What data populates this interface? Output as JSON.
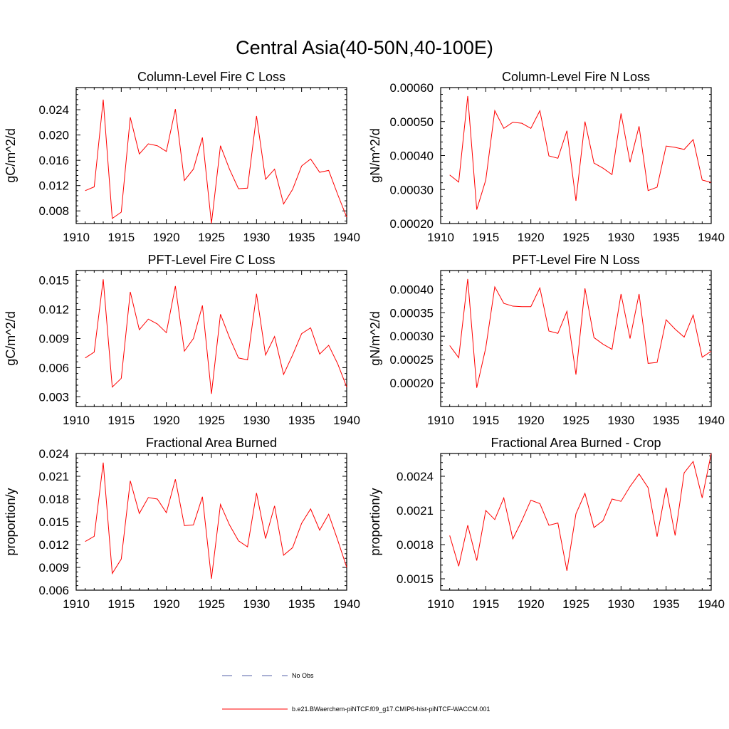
{
  "title": "Central Asia(40-50N,40-100E)",
  "colors": {
    "model_line": "#ff0000",
    "obs_line": "#5560a8",
    "axis": "#000000"
  },
  "legend": [
    {
      "label": "No Obs",
      "style": "dashed",
      "color": "#5560a8"
    },
    {
      "label": "b.e21.BWaerchem-piNTCF.f09_g17.CMIP6-hist-piNTCF-WACCM.001",
      "style": "solid",
      "color": "#ff0000"
    }
  ],
  "chart_data": [
    {
      "type": "line",
      "title": "Column-Level Fire C Loss",
      "ylabel": "gC/m^2/d",
      "xlim": [
        1910,
        1940
      ],
      "ylim": [
        0.006,
        0.0275
      ],
      "xticks": [
        1910,
        1915,
        1920,
        1925,
        1930,
        1935,
        1940
      ],
      "yticks": [
        0.008,
        0.012,
        0.016,
        0.02,
        0.024
      ],
      "ytick_labels": [
        "0.008",
        "0.012",
        "0.016",
        "0.020",
        "0.024"
      ],
      "x": [
        1911,
        1912,
        1913,
        1914,
        1915,
        1916,
        1917,
        1918,
        1919,
        1920,
        1921,
        1922,
        1923,
        1924,
        1925,
        1926,
        1927,
        1928,
        1929,
        1930,
        1931,
        1932,
        1933,
        1934,
        1935,
        1936,
        1937,
        1938,
        1939,
        1940
      ],
      "series": [
        {
          "values": [
            0.0112,
            0.0118,
            0.0256,
            0.0068,
            0.0078,
            0.0228,
            0.017,
            0.0186,
            0.0183,
            0.0174,
            0.0241,
            0.0128,
            0.0146,
            0.0196,
            0.006,
            0.0183,
            0.0146,
            0.0115,
            0.0116,
            0.023,
            0.013,
            0.0146,
            0.0091,
            0.0114,
            0.0151,
            0.0162,
            0.0141,
            0.0144,
            0.0106,
            0.007
          ]
        }
      ]
    },
    {
      "type": "line",
      "title": "Column-Level Fire N Loss",
      "ylabel": "gN/m^2/d",
      "xlim": [
        1910,
        1940
      ],
      "ylim": [
        0.0002,
        0.0006
      ],
      "xticks": [
        1910,
        1915,
        1920,
        1925,
        1930,
        1935,
        1940
      ],
      "yticks": [
        0.0002,
        0.0003,
        0.0004,
        0.0005,
        0.0006
      ],
      "ytick_labels": [
        "0.00020",
        "0.00030",
        "0.00040",
        "0.00050",
        "0.00060"
      ],
      "x": [
        1911,
        1912,
        1913,
        1914,
        1915,
        1916,
        1917,
        1918,
        1919,
        1920,
        1921,
        1922,
        1923,
        1924,
        1925,
        1926,
        1927,
        1928,
        1929,
        1930,
        1931,
        1932,
        1933,
        1934,
        1935,
        1936,
        1937,
        1938,
        1939,
        1940
      ],
      "series": [
        {
          "values": [
            0.000343,
            0.000322,
            0.000575,
            0.000241,
            0.000328,
            0.000532,
            0.00048,
            0.000498,
            0.000495,
            0.00048,
            0.000532,
            0.000399,
            0.000392,
            0.000473,
            0.000267,
            0.0005,
            0.000378,
            0.000363,
            0.000344,
            0.000524,
            0.00038,
            0.000486,
            0.000297,
            0.000307,
            0.000428,
            0.000424,
            0.000418,
            0.000447,
            0.000328,
            0.000321
          ]
        }
      ]
    },
    {
      "type": "line",
      "title": "PFT-Level Fire C Loss",
      "ylabel": "gC/m^2/d",
      "xlim": [
        1910,
        1940
      ],
      "ylim": [
        0.002,
        0.016
      ],
      "xticks": [
        1910,
        1915,
        1920,
        1925,
        1930,
        1935,
        1940
      ],
      "yticks": [
        0.003,
        0.006,
        0.009,
        0.012,
        0.015
      ],
      "ytick_labels": [
        "0.003",
        "0.006",
        "0.009",
        "0.012",
        "0.015"
      ],
      "x": [
        1911,
        1912,
        1913,
        1914,
        1915,
        1916,
        1917,
        1918,
        1919,
        1920,
        1921,
        1922,
        1923,
        1924,
        1925,
        1926,
        1927,
        1928,
        1929,
        1930,
        1931,
        1932,
        1933,
        1934,
        1935,
        1936,
        1937,
        1938,
        1939,
        1940
      ],
      "series": [
        {
          "values": [
            0.007,
            0.0076,
            0.0151,
            0.004,
            0.0049,
            0.0138,
            0.0099,
            0.011,
            0.0105,
            0.0096,
            0.0144,
            0.0077,
            0.009,
            0.0124,
            0.0033,
            0.0115,
            0.0091,
            0.007,
            0.0068,
            0.0136,
            0.0073,
            0.0092,
            0.0053,
            0.0073,
            0.0095,
            0.0101,
            0.0074,
            0.0083,
            0.0064,
            0.004
          ]
        }
      ]
    },
    {
      "type": "line",
      "title": "PFT-Level Fire N Loss",
      "ylabel": "gN/m^2/d",
      "xlim": [
        1910,
        1940
      ],
      "ylim": [
        0.00015,
        0.00044
      ],
      "xticks": [
        1910,
        1915,
        1920,
        1925,
        1930,
        1935,
        1940
      ],
      "yticks": [
        0.0002,
        0.00025,
        0.0003,
        0.00035,
        0.0004
      ],
      "ytick_labels": [
        "0.00020",
        "0.00025",
        "0.00030",
        "0.00035",
        "0.00040"
      ],
      "x": [
        1911,
        1912,
        1913,
        1914,
        1915,
        1916,
        1917,
        1918,
        1919,
        1920,
        1921,
        1922,
        1923,
        1924,
        1925,
        1926,
        1927,
        1928,
        1929,
        1930,
        1931,
        1932,
        1933,
        1934,
        1935,
        1936,
        1937,
        1938,
        1939,
        1940
      ],
      "series": [
        {
          "values": [
            0.00028,
            0.000254,
            0.000422,
            0.00019,
            0.000275,
            0.000405,
            0.00037,
            0.000364,
            0.000363,
            0.000363,
            0.000403,
            0.000311,
            0.000306,
            0.000353,
            0.000218,
            0.000402,
            0.000297,
            0.000283,
            0.000272,
            0.00039,
            0.000295,
            0.00039,
            0.000242,
            0.000244,
            0.000335,
            0.000315,
            0.000298,
            0.000345,
            0.000255,
            0.000268
          ]
        }
      ]
    },
    {
      "type": "line",
      "title": "Fractional Area Burned",
      "ylabel": "proportion/y",
      "xlim": [
        1910,
        1940
      ],
      "ylim": [
        0.006,
        0.024
      ],
      "xticks": [
        1910,
        1915,
        1920,
        1925,
        1930,
        1935,
        1940
      ],
      "yticks": [
        0.006,
        0.009,
        0.012,
        0.015,
        0.018,
        0.021,
        0.024
      ],
      "ytick_labels": [
        "0.006",
        "0.009",
        "0.012",
        "0.015",
        "0.018",
        "0.021",
        "0.024"
      ],
      "x": [
        1911,
        1912,
        1913,
        1914,
        1915,
        1916,
        1917,
        1918,
        1919,
        1920,
        1921,
        1922,
        1923,
        1924,
        1925,
        1926,
        1927,
        1928,
        1929,
        1930,
        1931,
        1932,
        1933,
        1934,
        1935,
        1936,
        1937,
        1938,
        1939,
        1940
      ],
      "series": [
        {
          "values": [
            0.0124,
            0.0131,
            0.0228,
            0.0082,
            0.0101,
            0.0204,
            0.0161,
            0.0182,
            0.018,
            0.0162,
            0.0206,
            0.0145,
            0.0146,
            0.0183,
            0.0075,
            0.0173,
            0.0146,
            0.0125,
            0.0117,
            0.0188,
            0.0128,
            0.0171,
            0.0106,
            0.0116,
            0.0148,
            0.0167,
            0.0139,
            0.016,
            0.0126,
            0.009
          ]
        }
      ]
    },
    {
      "type": "line",
      "title": "Fractional Area Burned - Crop",
      "ylabel": "proportion/y",
      "xlim": [
        1910,
        1940
      ],
      "ylim": [
        0.0014,
        0.0026
      ],
      "xticks": [
        1910,
        1915,
        1920,
        1925,
        1930,
        1935,
        1940
      ],
      "yticks": [
        0.0015,
        0.0018,
        0.0021,
        0.0024
      ],
      "ytick_labels": [
        "0.0015",
        "0.0018",
        "0.0021",
        "0.0024"
      ],
      "x": [
        1911,
        1912,
        1913,
        1914,
        1915,
        1916,
        1917,
        1918,
        1919,
        1920,
        1921,
        1922,
        1923,
        1924,
        1925,
        1926,
        1927,
        1928,
        1929,
        1930,
        1931,
        1932,
        1933,
        1934,
        1935,
        1936,
        1937,
        1938,
        1939,
        1940
      ],
      "series": [
        {
          "values": [
            0.00188,
            0.00161,
            0.00197,
            0.00166,
            0.0021,
            0.00202,
            0.00221,
            0.00185,
            0.00201,
            0.00219,
            0.00216,
            0.00197,
            0.00199,
            0.00157,
            0.00207,
            0.00225,
            0.00195,
            0.00201,
            0.0022,
            0.00218,
            0.00231,
            0.00242,
            0.0023,
            0.00187,
            0.0023,
            0.00188,
            0.00243,
            0.00253,
            0.00221,
            0.0026
          ]
        }
      ]
    }
  ]
}
